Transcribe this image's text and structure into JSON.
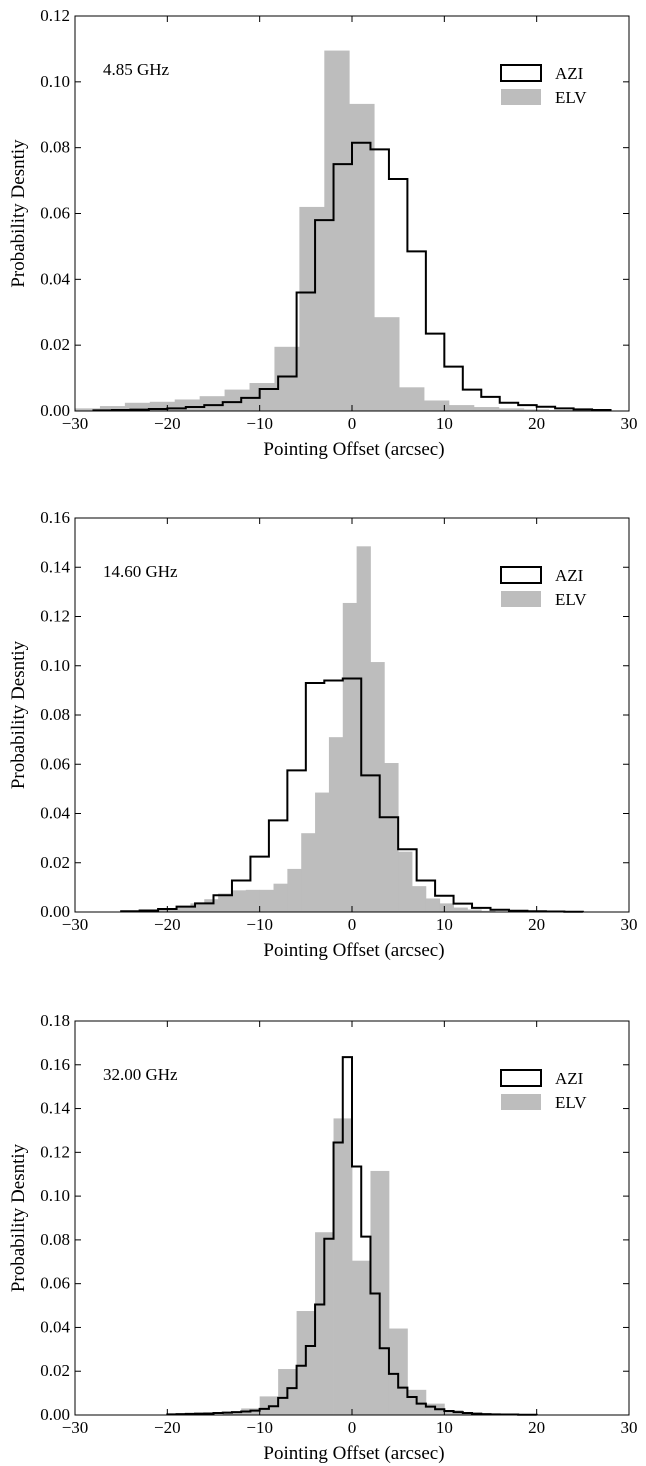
{
  "chart_data": [
    {
      "type": "histogram",
      "annotation": "4.85 GHz",
      "xlabel": "Pointing Offset (arcsec)",
      "ylabel": "Probability Desntiy",
      "xlim": [
        -30,
        30
      ],
      "ylim": [
        0,
        0.12
      ],
      "xticks": [
        -30,
        -20,
        -10,
        0,
        10,
        20,
        30
      ],
      "yticks": [
        "0.00",
        "0.02",
        "0.04",
        "0.06",
        "0.08",
        "0.10",
        "0.12"
      ],
      "legend": {
        "position": "top-right",
        "entries": [
          "AZI",
          "ELV"
        ]
      },
      "series": [
        {
          "name": "AZI",
          "style": "step",
          "color": "#000000",
          "bins": [
            -28,
            -26,
            -24,
            -22,
            -20,
            -18,
            -16,
            -14,
            -12,
            -10,
            -8,
            -6,
            -4,
            -2,
            0,
            2,
            4,
            6,
            8,
            10,
            12,
            14,
            16,
            18,
            20,
            22,
            24,
            26,
            28
          ],
          "values": [
            0.0002,
            0.0003,
            0.0004,
            0.0006,
            0.0008,
            0.0012,
            0.0018,
            0.0027,
            0.004,
            0.0067,
            0.0105,
            0.036,
            0.058,
            0.075,
            0.0815,
            0.0795,
            0.0705,
            0.0485,
            0.0235,
            0.0135,
            0.0065,
            0.0043,
            0.0025,
            0.0018,
            0.0013,
            0.0008,
            0.0005,
            0.0003
          ]
        },
        {
          "name": "ELV",
          "style": "fill",
          "color": "#bdbdbd",
          "bins": [
            -30,
            -27.3,
            -24.6,
            -21.9,
            -19.2,
            -16.5,
            -13.8,
            -11.1,
            -8.4,
            -5.7,
            -3,
            -0.3,
            2.4,
            5.1,
            7.8,
            10.5,
            13.2,
            15.9,
            18.6,
            21.3,
            24
          ],
          "values": [
            0.0008,
            0.0015,
            0.0025,
            0.0028,
            0.0035,
            0.0045,
            0.0065,
            0.0085,
            0.0195,
            0.062,
            0.1095,
            0.0933,
            0.0285,
            0.0072,
            0.0032,
            0.0018,
            0.0012,
            0.0008,
            0.0005,
            0.0003
          ]
        }
      ]
    },
    {
      "type": "histogram",
      "annotation": "14.60 GHz",
      "xlabel": "Pointing Offset (arcsec)",
      "ylabel": "Probability Desntiy",
      "xlim": [
        -30,
        30
      ],
      "ylim": [
        0,
        0.16
      ],
      "xticks": [
        -30,
        -20,
        -10,
        0,
        10,
        20,
        30
      ],
      "yticks": [
        "0.00",
        "0.02",
        "0.04",
        "0.06",
        "0.08",
        "0.10",
        "0.12",
        "0.14",
        "0.16"
      ],
      "legend": {
        "position": "top-right",
        "entries": [
          "AZI",
          "ELV"
        ]
      },
      "series": [
        {
          "name": "AZI",
          "style": "step",
          "color": "#000000",
          "bins": [
            -25,
            -23,
            -21,
            -19,
            -17,
            -15,
            -13,
            -11,
            -9,
            -7,
            -5,
            -3,
            -1,
            1,
            3,
            5,
            7,
            9,
            11,
            13,
            15,
            17,
            19,
            21,
            23,
            25
          ],
          "values": [
            0.0003,
            0.0006,
            0.0012,
            0.0022,
            0.0035,
            0.0068,
            0.0128,
            0.0225,
            0.0372,
            0.0575,
            0.093,
            0.094,
            0.0948,
            0.0555,
            0.0385,
            0.0255,
            0.0128,
            0.0066,
            0.0034,
            0.0017,
            0.0009,
            0.0005,
            0.0003,
            0.0002,
            0.0001
          ]
        },
        {
          "name": "ELV",
          "style": "fill",
          "color": "#bdbdbd",
          "bins": [
            -22,
            -20.5,
            -19,
            -17.5,
            -16,
            -14.5,
            -13,
            -11.5,
            -10,
            -8.5,
            -7,
            -5.5,
            -4,
            -2.5,
            -1,
            0.5,
            2,
            3.5,
            5,
            6.5,
            8,
            9.5,
            11,
            12.5,
            14,
            15.5
          ],
          "values": [
            0.0008,
            0.0012,
            0.0022,
            0.0035,
            0.0052,
            0.0075,
            0.0088,
            0.009,
            0.009,
            0.0115,
            0.0175,
            0.032,
            0.0485,
            0.071,
            0.1255,
            0.1485,
            0.1015,
            0.0605,
            0.0245,
            0.0105,
            0.0055,
            0.0035,
            0.0018,
            0.001,
            0.0005
          ]
        }
      ]
    },
    {
      "type": "histogram",
      "annotation": "32.00 GHz",
      "xlabel": "Pointing Offset (arcsec)",
      "ylabel": "Probability Desntiy",
      "xlim": [
        -30,
        30
      ],
      "ylim": [
        0,
        0.18
      ],
      "xticks": [
        -30,
        -20,
        -10,
        0,
        10,
        20,
        30
      ],
      "yticks": [
        "0.00",
        "0.02",
        "0.04",
        "0.06",
        "0.08",
        "0.10",
        "0.12",
        "0.14",
        "0.16",
        "0.18"
      ],
      "legend": {
        "position": "top-right",
        "entries": [
          "AZI",
          "ELV"
        ]
      },
      "series": [
        {
          "name": "AZI",
          "style": "step",
          "color": "#000000",
          "bins": [
            -20,
            -19,
            -18,
            -17,
            -16,
            -15,
            -14,
            -13,
            -12,
            -11,
            -10,
            -9,
            -8,
            -7,
            -6,
            -5,
            -4,
            -3,
            -2,
            -1,
            0,
            1,
            2,
            3,
            4,
            5,
            6,
            7,
            8,
            9,
            10,
            11,
            12,
            13,
            14,
            15,
            16,
            17,
            18,
            19,
            20
          ],
          "values": [
            0.0003,
            0.0004,
            0.0005,
            0.0006,
            0.0007,
            0.0009,
            0.0011,
            0.0013,
            0.0016,
            0.002,
            0.0028,
            0.004,
            0.0078,
            0.0123,
            0.0225,
            0.0315,
            0.0505,
            0.0805,
            0.1245,
            0.1635,
            0.1135,
            0.0815,
            0.0555,
            0.0305,
            0.0188,
            0.0125,
            0.0082,
            0.0052,
            0.0038,
            0.0026,
            0.0018,
            0.0013,
            0.0009,
            0.0006,
            0.0004,
            0.0003,
            0.0002,
            0.0002,
            0.0001,
            0.0001
          ]
        },
        {
          "name": "ELV",
          "style": "fill",
          "color": "#bdbdbd",
          "bins": [
            -14,
            -12,
            -10,
            -8,
            -6,
            -4,
            -2,
            0,
            2,
            4,
            6,
            8,
            10,
            12,
            14
          ],
          "values": [
            0.0015,
            0.003,
            0.0085,
            0.021,
            0.0475,
            0.0835,
            0.1355,
            0.0705,
            0.1115,
            0.0395,
            0.0115,
            0.0052,
            0.0022,
            0.0008
          ]
        }
      ]
    }
  ]
}
